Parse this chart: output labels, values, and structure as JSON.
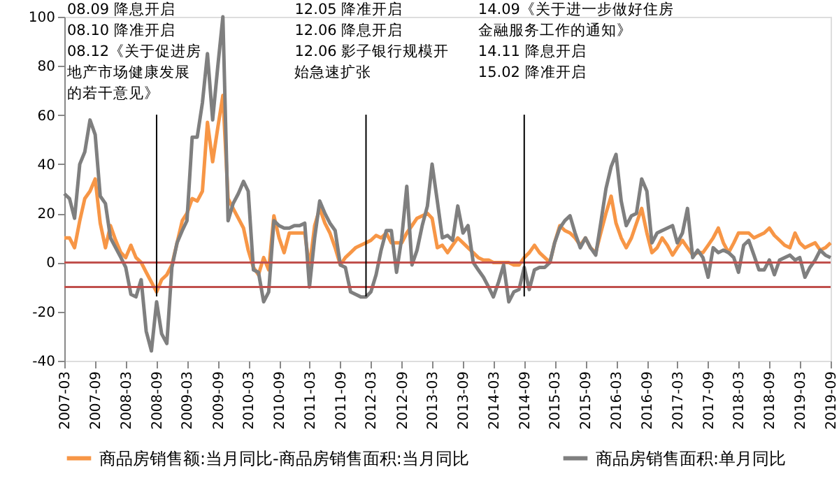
{
  "chart_data": {
    "type": "line",
    "x": [
      "2007-03",
      "2007-04",
      "2007-05",
      "2007-06",
      "2007-07",
      "2007-08",
      "2007-09",
      "2007-10",
      "2007-11",
      "2007-12",
      "2008-01",
      "2008-02",
      "2008-03",
      "2008-04",
      "2008-05",
      "2008-06",
      "2008-07",
      "2008-08",
      "2008-09",
      "2008-10",
      "2008-11",
      "2008-12",
      "2009-01",
      "2009-02",
      "2009-03",
      "2009-04",
      "2009-05",
      "2009-06",
      "2009-07",
      "2009-08",
      "2009-09",
      "2009-10",
      "2009-11",
      "2009-12",
      "2010-01",
      "2010-02",
      "2010-03",
      "2010-04",
      "2010-05",
      "2010-06",
      "2010-07",
      "2010-08",
      "2010-09",
      "2010-10",
      "2010-11",
      "2010-12",
      "2011-01",
      "2011-02",
      "2011-03",
      "2011-04",
      "2011-05",
      "2011-06",
      "2011-07",
      "2011-08",
      "2011-09",
      "2011-10",
      "2011-11",
      "2011-12",
      "2012-01",
      "2012-02",
      "2012-03",
      "2012-04",
      "2012-05",
      "2012-06",
      "2012-07",
      "2012-08",
      "2012-09",
      "2012-10",
      "2012-11",
      "2012-12",
      "2013-01",
      "2013-02",
      "2013-03",
      "2013-04",
      "2013-05",
      "2013-06",
      "2013-07",
      "2013-08",
      "2013-09",
      "2013-10",
      "2013-11",
      "2013-12",
      "2014-01",
      "2014-02",
      "2014-03",
      "2014-04",
      "2014-05",
      "2014-06",
      "2014-07",
      "2014-08",
      "2014-09",
      "2014-10",
      "2014-11",
      "2014-12",
      "2015-01",
      "2015-02",
      "2015-03",
      "2015-04",
      "2015-05",
      "2015-06",
      "2015-07",
      "2015-08",
      "2015-09",
      "2015-10",
      "2015-11",
      "2015-12",
      "2016-01",
      "2016-02",
      "2016-03",
      "2016-04",
      "2016-05",
      "2016-06",
      "2016-07",
      "2016-08",
      "2016-09",
      "2016-10",
      "2016-11",
      "2016-12",
      "2017-01",
      "2017-02",
      "2017-03",
      "2017-04",
      "2017-05",
      "2017-06",
      "2017-07",
      "2017-08",
      "2017-09",
      "2017-10",
      "2017-11",
      "2017-12",
      "2018-01",
      "2018-02",
      "2018-03",
      "2018-04",
      "2018-05",
      "2018-06",
      "2018-07",
      "2018-08",
      "2018-09",
      "2018-10",
      "2018-11",
      "2018-12",
      "2019-01",
      "2019-02",
      "2019-03",
      "2019-04",
      "2019-05",
      "2019-06",
      "2019-07",
      "2019-08",
      "2019-09"
    ],
    "series": [
      {
        "name": "商品房销售额:当月同比-商品房销售面积:当月同比",
        "color": "#f79646",
        "values": [
          10,
          10,
          6,
          17,
          26,
          29,
          34,
          16,
          6,
          15,
          9,
          4,
          2,
          7,
          2,
          0,
          -4,
          -8,
          -12,
          -7,
          -5,
          -1,
          8,
          17,
          20,
          26,
          25,
          29,
          57,
          41,
          55,
          68,
          26,
          22,
          18,
          14,
          5,
          -2,
          -5,
          2,
          -3,
          19,
          10,
          4,
          12,
          12,
          12,
          12,
          -2,
          15,
          22,
          16,
          12,
          6,
          -1,
          2,
          4,
          6,
          7,
          8,
          9,
          11,
          10,
          12,
          8,
          8,
          8,
          12,
          15,
          18,
          19,
          20,
          18,
          6,
          7,
          4,
          7,
          10,
          8,
          6,
          4,
          2,
          1,
          1,
          0,
          0,
          0,
          0,
          -1,
          -1,
          2,
          4,
          7,
          4,
          2,
          0,
          8,
          15,
          13,
          12,
          10,
          7,
          10,
          6,
          4,
          12,
          20,
          27,
          16,
          10,
          6,
          10,
          16,
          22,
          12,
          4,
          6,
          10,
          7,
          3,
          6,
          9,
          6,
          3,
          4,
          4,
          7,
          10,
          14,
          8,
          4,
          8,
          12,
          12,
          12,
          10,
          11,
          12,
          14,
          11,
          9,
          7,
          6,
          12,
          8,
          6,
          7,
          8,
          5,
          6,
          8
        ]
      },
      {
        "name": "商品房销售面积:单月同比",
        "color": "#7f7f7f",
        "values": [
          28,
          26,
          18,
          40,
          45,
          58,
          52,
          27,
          24,
          10,
          6,
          2,
          -2,
          -13,
          -14,
          -7,
          -28,
          -36,
          -16,
          -29,
          -33,
          -2,
          8,
          13,
          17,
          51,
          51,
          65,
          85,
          58,
          80,
          100,
          17,
          24,
          28,
          33,
          29,
          -3,
          -4,
          -16,
          -12,
          17,
          15,
          14,
          14,
          15,
          15,
          16,
          -10,
          10,
          25,
          20,
          16,
          13,
          -1,
          -2,
          -12,
          -13,
          -14,
          -14,
          -12,
          -5,
          5,
          13,
          13,
          -4,
          10,
          31,
          -1,
          5,
          15,
          23,
          40,
          25,
          10,
          11,
          9,
          23,
          12,
          15,
          0,
          -3,
          -6,
          -10,
          -14,
          -8,
          -1,
          -16,
          -12,
          -11,
          -2,
          -11,
          -3,
          -2,
          -2,
          0,
          8,
          14,
          17,
          19,
          12,
          6,
          10,
          6,
          3,
          16,
          30,
          39,
          44,
          25,
          15,
          19,
          20,
          34,
          29,
          8,
          12,
          13,
          14,
          15,
          8,
          12,
          22,
          2,
          5,
          2,
          -6,
          6,
          4,
          5,
          4,
          2,
          -4,
          7,
          9,
          3,
          -3,
          -3,
          1,
          -5,
          1,
          2,
          3,
          1,
          2,
          -6,
          -2,
          1,
          5,
          3,
          2
        ]
      }
    ],
    "xlim": [
      "2007-03",
      "2019-09"
    ],
    "xticks": [
      "2007-03",
      "2007-09",
      "2008-03",
      "2008-09",
      "2009-03",
      "2009-09",
      "2010-03",
      "2010-09",
      "2011-03",
      "2011-09",
      "2012-03",
      "2012-09",
      "2013-03",
      "2013-09",
      "2014-03",
      "2014-09",
      "2015-03",
      "2015-09",
      "2016-03",
      "2016-09",
      "2017-03",
      "2017-09",
      "2018-03",
      "2018-09",
      "2019-03",
      "2019-09"
    ],
    "ylim": [
      -40,
      100
    ],
    "yticks": [
      -40,
      -20,
      0,
      20,
      40,
      60,
      80,
      100
    ],
    "ref_lines": [
      {
        "axis": "y",
        "value": 0,
        "color": "#c0504d"
      },
      {
        "axis": "y",
        "value": -10,
        "color": "#c0504d"
      },
      {
        "axis": "x",
        "value": "2008-09",
        "color": "#000000",
        "label": [
          "08.09 降息开启",
          "08.10 降准开启",
          "08.12《关于促进房地产市场健康发展的若干意见》"
        ]
      },
      {
        "axis": "x",
        "value": "2012-02",
        "color": "#000000",
        "label": [
          "12.05 降准开启",
          "12.06 降息开启",
          "12.06 影子银行规模开始急速扩张"
        ]
      },
      {
        "axis": "x",
        "value": "2014-09",
        "color": "#000000",
        "label": [
          "14.09《关于进一步做好住房金融服务工作的通知》",
          "14.11 降息开启",
          "15.02 降准开启"
        ]
      }
    ],
    "legend": "bottom"
  }
}
